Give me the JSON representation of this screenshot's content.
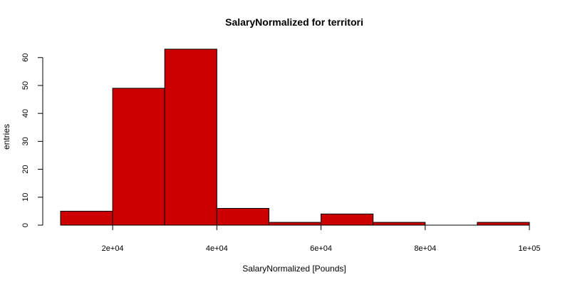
{
  "chart_data": {
    "type": "bar",
    "title": "SalaryNormalized for territori",
    "xlabel": "SalaryNormalized [Pounds]",
    "ylabel": "entries",
    "bar_color": "#cc0000",
    "edge_color": "#000000",
    "bins": [
      {
        "x0": 10000,
        "x1": 20000,
        "count": 5
      },
      {
        "x0": 20000,
        "x1": 30000,
        "count": 49
      },
      {
        "x0": 30000,
        "x1": 40000,
        "count": 63
      },
      {
        "x0": 40000,
        "x1": 50000,
        "count": 6
      },
      {
        "x0": 50000,
        "x1": 60000,
        "count": 1
      },
      {
        "x0": 60000,
        "x1": 70000,
        "count": 4
      },
      {
        "x0": 70000,
        "x1": 80000,
        "count": 1
      },
      {
        "x0": 80000,
        "x1": 90000,
        "count": 0
      },
      {
        "x0": 90000,
        "x1": 100000,
        "count": 1
      }
    ],
    "xlim": [
      10000,
      100000
    ],
    "ylim": [
      0,
      63
    ],
    "x_ticks": [
      {
        "value": 20000,
        "label": "2e+04"
      },
      {
        "value": 40000,
        "label": "4e+04"
      },
      {
        "value": 60000,
        "label": "6e+04"
      },
      {
        "value": 80000,
        "label": "8e+04"
      },
      {
        "value": 100000,
        "label": "1e+05"
      }
    ],
    "y_ticks": [
      {
        "value": 0,
        "label": "0"
      },
      {
        "value": 10,
        "label": "10"
      },
      {
        "value": 20,
        "label": "20"
      },
      {
        "value": 30,
        "label": "30"
      },
      {
        "value": 40,
        "label": "40"
      },
      {
        "value": 50,
        "label": "50"
      },
      {
        "value": 60,
        "label": "60"
      }
    ],
    "grid": false,
    "legend": "none"
  }
}
